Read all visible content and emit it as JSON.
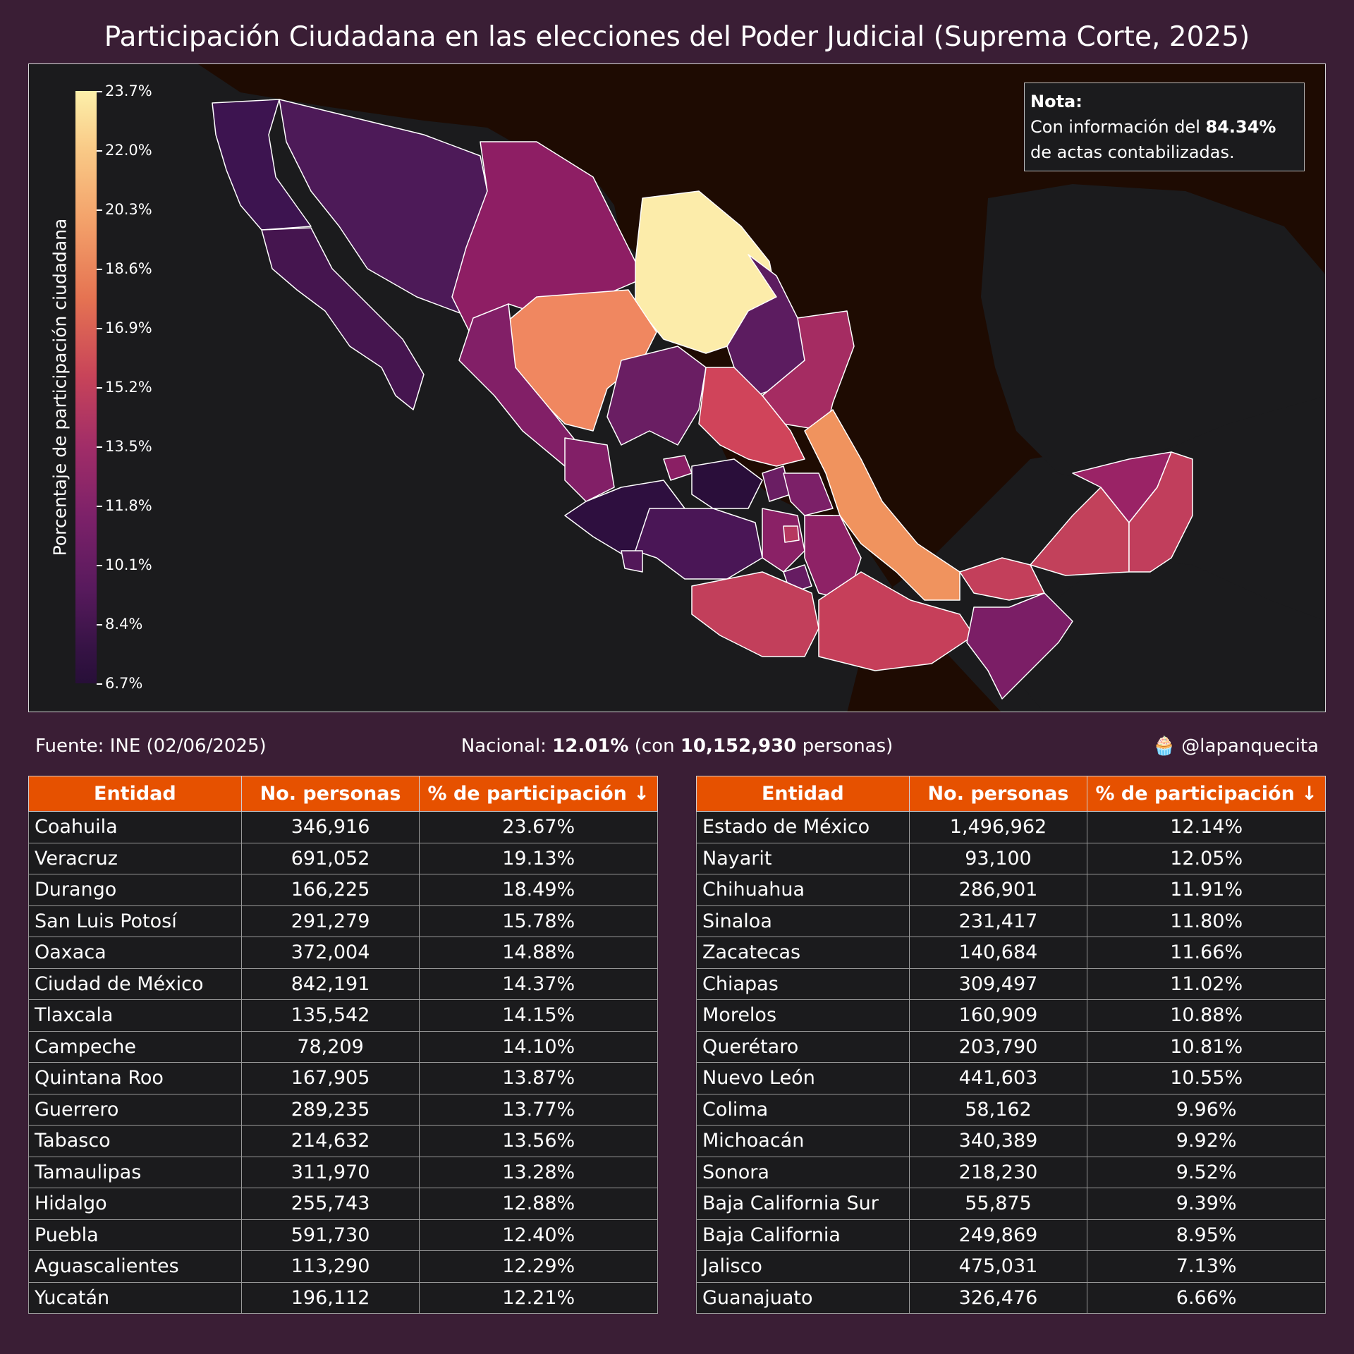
{
  "title": "Participación Ciudadana en las elecciones del Poder Judicial (Suprema Corte, 2025)",
  "note": {
    "heading": "Nota:",
    "line1_prefix": "Con información del ",
    "line1_value": "84.34%",
    "line2": "de actas contabilizadas."
  },
  "colorbar": {
    "title": "Porcentaje de participación ciudadana",
    "ticks": [
      "23.7%",
      "22.0%",
      "20.3%",
      "18.6%",
      "16.9%",
      "15.2%",
      "13.5%",
      "11.8%",
      "10.1%",
      "8.4%",
      "6.7%"
    ],
    "min": 6.7,
    "max": 23.7,
    "palette": "inferno-like: dark purple (low) to pale yellow (high)"
  },
  "footer": {
    "source": "Fuente: INE (02/06/2025)",
    "national_label": "Nacional:",
    "national_pct": "12.01%",
    "national_mid": "(con",
    "national_people": "10,152,930",
    "national_end": "personas)",
    "handle_icon": "cupcake-icon",
    "handle": "@lapanquecita"
  },
  "colors": {
    "background": "#3a1e35",
    "map_background": "#1b1b1d",
    "ocean": "#1e0b02",
    "header": "#e65100"
  },
  "table": {
    "headers": [
      "Entidad",
      "No. personas",
      "% de participación ↓"
    ],
    "left": [
      [
        "Coahuila",
        "346,916",
        "23.67%"
      ],
      [
        "Veracruz",
        "691,052",
        "19.13%"
      ],
      [
        "Durango",
        "166,225",
        "18.49%"
      ],
      [
        "San Luis Potosí",
        "291,279",
        "15.78%"
      ],
      [
        "Oaxaca",
        "372,004",
        "14.88%"
      ],
      [
        "Ciudad de México",
        "842,191",
        "14.37%"
      ],
      [
        "Tlaxcala",
        "135,542",
        "14.15%"
      ],
      [
        "Campeche",
        "78,209",
        "14.10%"
      ],
      [
        "Quintana Roo",
        "167,905",
        "13.87%"
      ],
      [
        "Guerrero",
        "289,235",
        "13.77%"
      ],
      [
        "Tabasco",
        "214,632",
        "13.56%"
      ],
      [
        "Tamaulipas",
        "311,970",
        "13.28%"
      ],
      [
        "Hidalgo",
        "255,743",
        "12.88%"
      ],
      [
        "Puebla",
        "591,730",
        "12.40%"
      ],
      [
        "Aguascalientes",
        "113,290",
        "12.29%"
      ],
      [
        "Yucatán",
        "196,112",
        "12.21%"
      ]
    ],
    "right": [
      [
        "Estado de México",
        "1,496,962",
        "12.14%"
      ],
      [
        "Nayarit",
        "93,100",
        "12.05%"
      ],
      [
        "Chihuahua",
        "286,901",
        "11.91%"
      ],
      [
        "Sinaloa",
        "231,417",
        "11.80%"
      ],
      [
        "Zacatecas",
        "140,684",
        "11.66%"
      ],
      [
        "Chiapas",
        "309,497",
        "11.02%"
      ],
      [
        "Morelos",
        "160,909",
        "10.88%"
      ],
      [
        "Querétaro",
        "203,790",
        "10.81%"
      ],
      [
        "Nuevo León",
        "441,603",
        "10.55%"
      ],
      [
        "Colima",
        "58,162",
        "9.96%"
      ],
      [
        "Michoacán",
        "340,389",
        "9.92%"
      ],
      [
        "Sonora",
        "218,230",
        "9.52%"
      ],
      [
        "Baja California Sur",
        "55,875",
        "9.39%"
      ],
      [
        "Baja California",
        "249,869",
        "8.95%"
      ],
      [
        "Jalisco",
        "475,031",
        "7.13%"
      ],
      [
        "Guanajuato",
        "326,476",
        "6.66%"
      ]
    ]
  }
}
